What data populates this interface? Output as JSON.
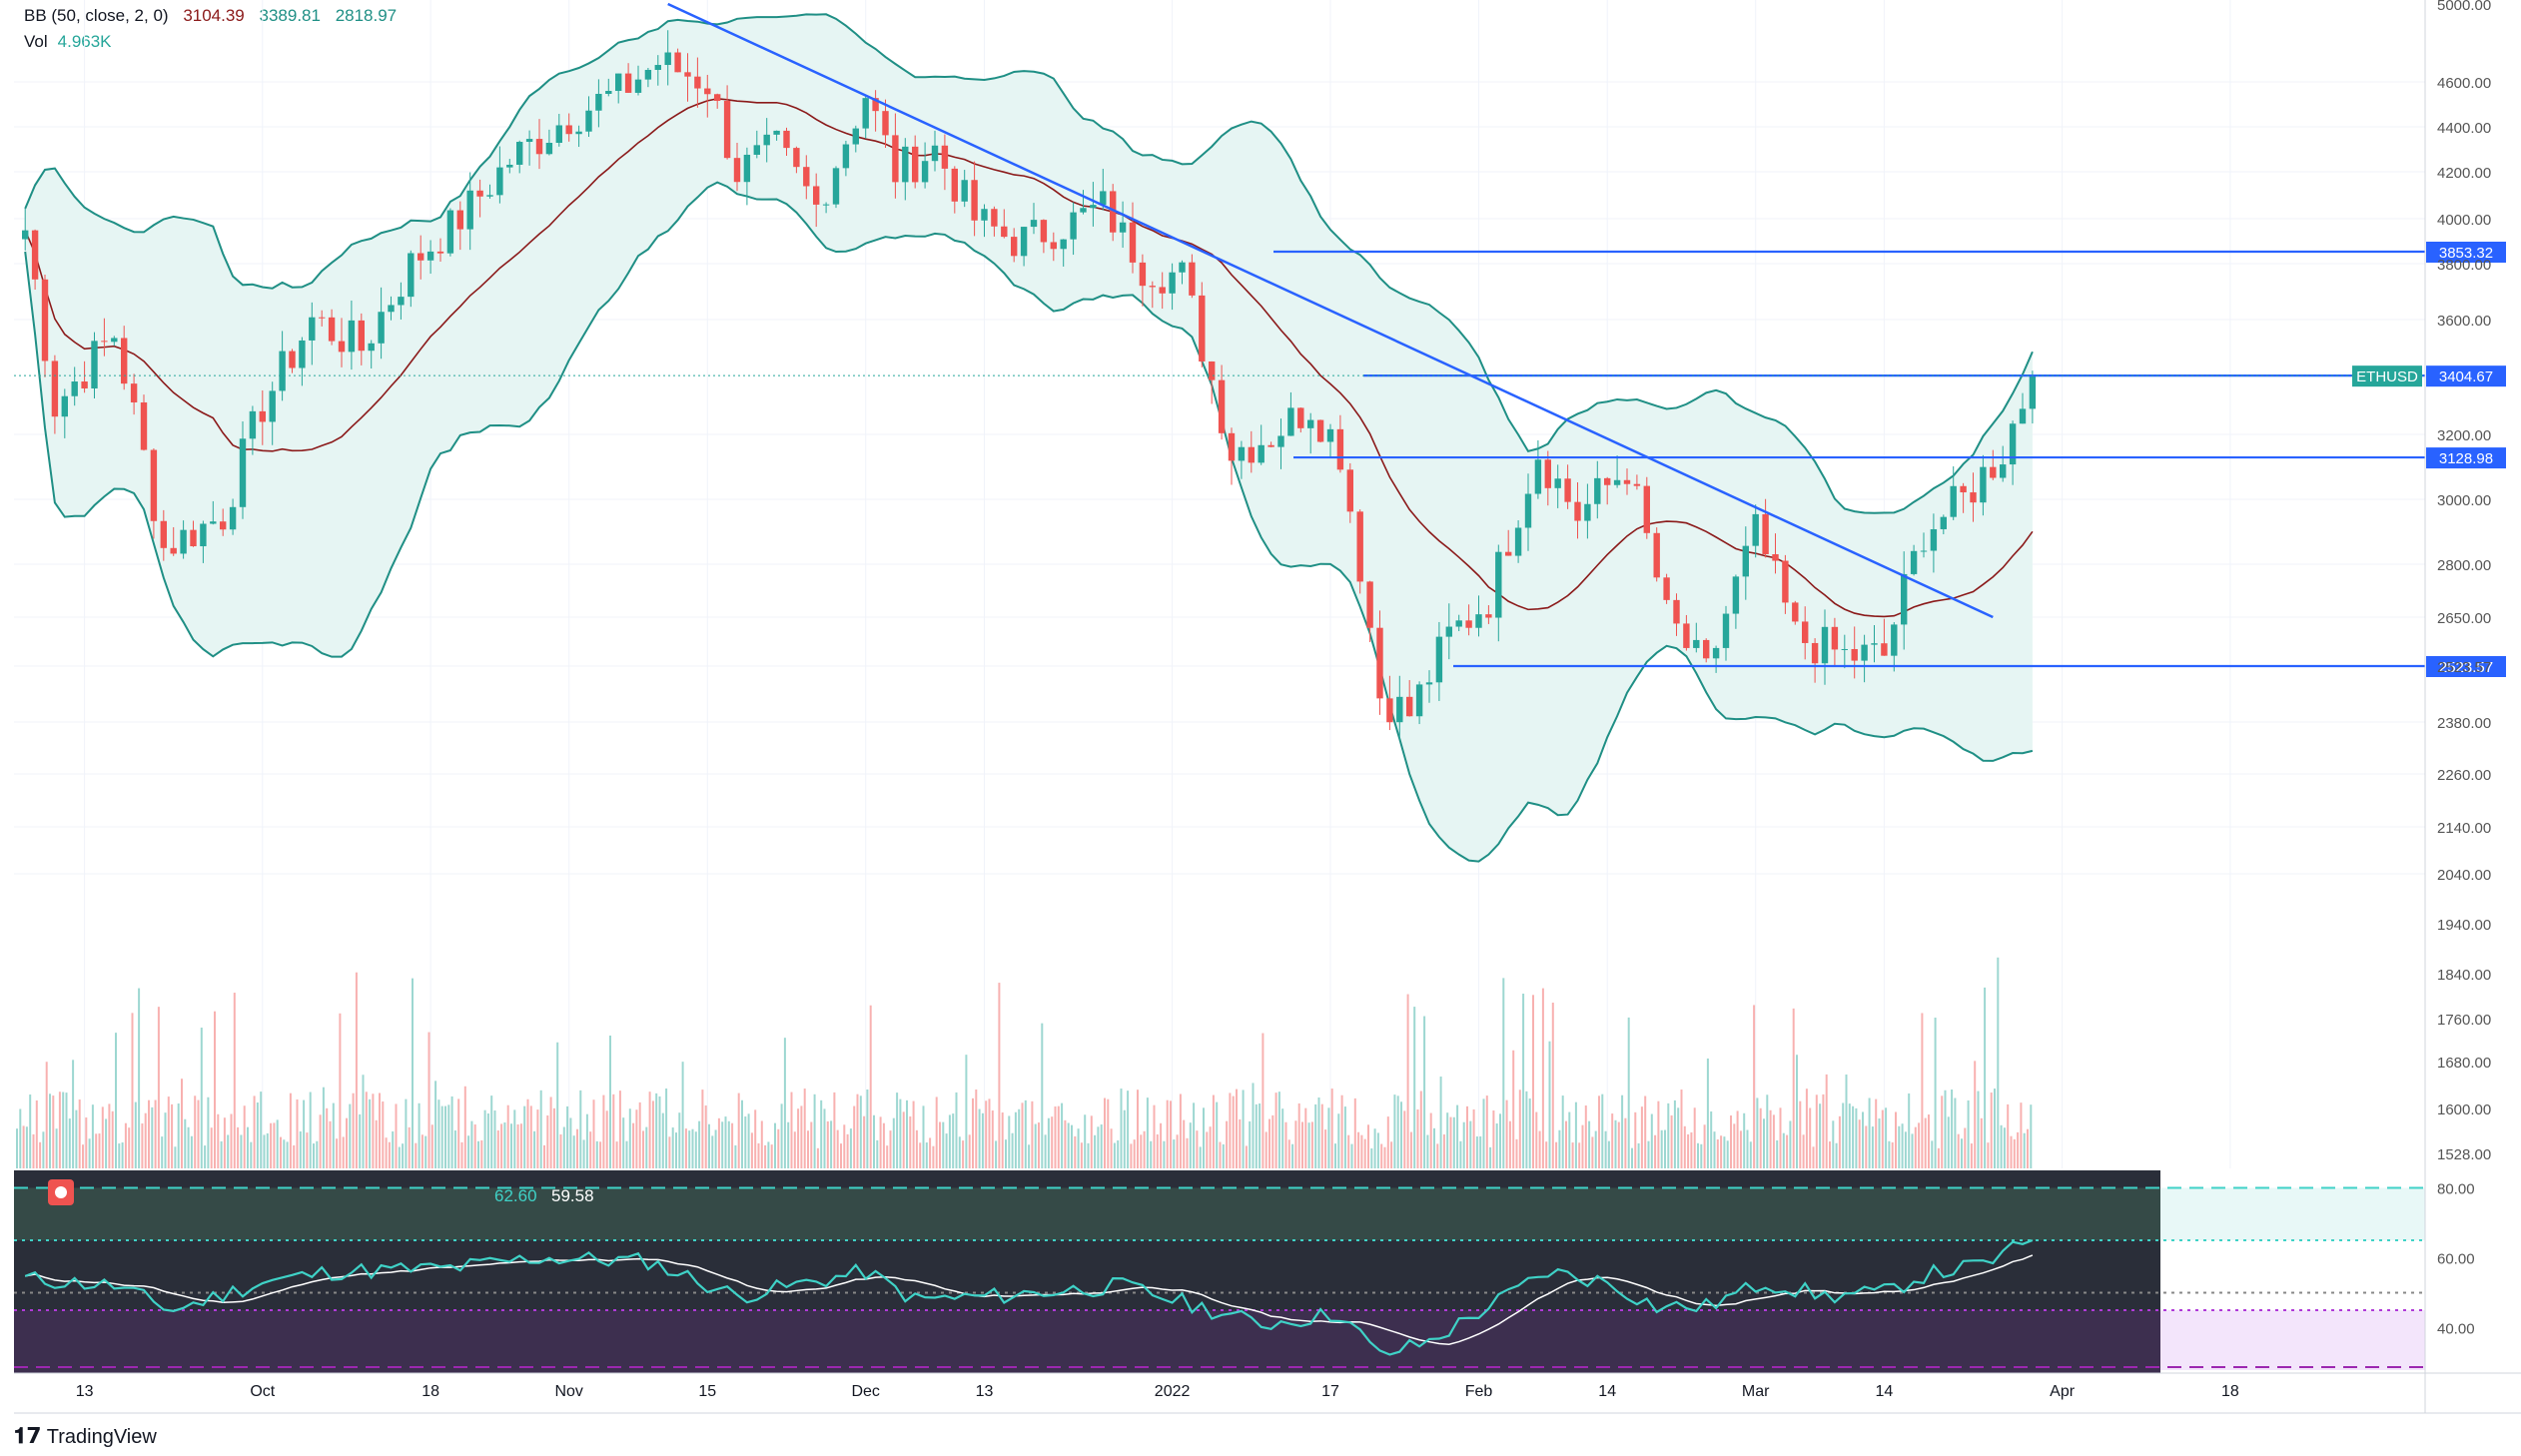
{
  "header": {
    "bb_label": "BB (50, close, 2, 0)",
    "bb_basis": "3104.39",
    "bb_upper": "3389.81",
    "bb_lower": "2818.97",
    "vol_label": "Vol",
    "vol_value": "4.963K"
  },
  "rsi_legend": {
    "value1": "62.60",
    "value2": "59.58"
  },
  "footer": {
    "brand": "TradingView"
  },
  "colors": {
    "up": "#26a69a",
    "down": "#ef5350",
    "band": "#1f8f85",
    "band_fill": "#e6f5f3",
    "basis": "#8b1a1a",
    "lines": "#2962ff",
    "rsi": "#3fd2c7",
    "rsi_signal": "#ffffff"
  },
  "chart_data": [
    {
      "type": "candlestick",
      "symbol": "ETHUSD",
      "price_label": "3404.67",
      "x_ticks": [
        "13",
        "Oct",
        "18",
        "Nov",
        "15",
        "Dec",
        "13",
        "2022",
        "17",
        "Feb",
        "14",
        "Mar",
        "14",
        "Apr",
        "18"
      ],
      "y_ticks": [
        "5000.00",
        "4600.00",
        "4400.00",
        "4200.00",
        "4000.00",
        "3800.00",
        "3600.00",
        "3200.00",
        "3000.00",
        "2800.00",
        "2650.00",
        "2523.57",
        "2380.00",
        "2260.00",
        "2140.00",
        "2040.00",
        "1940.00",
        "1840.00",
        "1760.00",
        "1680.00",
        "1600.00",
        "1528.00"
      ],
      "horizontal_lines": [
        {
          "price": 3853.32,
          "label": "3853.32"
        },
        {
          "price": 3404.67,
          "label": "3404.67"
        },
        {
          "price": 3128.98,
          "label": "3128.98"
        },
        {
          "price": 2523.57,
          "label": "2523.57"
        }
      ],
      "trendline": {
        "from": {
          "date": "2021-11-11",
          "price": 5000
        },
        "to": {
          "date": "2022-03-25",
          "price": 2650
        }
      },
      "close_key": [
        [
          "2021-09-07",
          3950
        ],
        [
          "2021-09-10",
          3300
        ],
        [
          "2021-09-16",
          3550
        ],
        [
          "2021-09-21",
          2850
        ],
        [
          "2021-09-27",
          2950
        ],
        [
          "2021-10-01",
          3300
        ],
        [
          "2021-10-06",
          3600
        ],
        [
          "2021-10-11",
          3500
        ],
        [
          "2021-10-16",
          3800
        ],
        [
          "2021-10-21",
          4000
        ],
        [
          "2021-10-26",
          4250
        ],
        [
          "2021-11-01",
          4450
        ],
        [
          "2021-11-06",
          4550
        ],
        [
          "2021-11-10",
          4700
        ],
        [
          "2021-11-15",
          4600
        ],
        [
          "2021-11-18",
          4200
        ],
        [
          "2021-11-22",
          4300
        ],
        [
          "2021-11-26",
          4050
        ],
        [
          "2021-12-01",
          4550
        ],
        [
          "2021-12-04",
          4200
        ],
        [
          "2021-12-08",
          4300
        ],
        [
          "2021-12-12",
          4000
        ],
        [
          "2021-12-16",
          3900
        ],
        [
          "2021-12-20",
          3950
        ],
        [
          "2021-12-25",
          4050
        ],
        [
          "2021-12-29",
          3800
        ],
        [
          "2022-01-02",
          3750
        ],
        [
          "2022-01-07",
          3150
        ],
        [
          "2022-01-11",
          3200
        ],
        [
          "2022-01-15",
          3300
        ],
        [
          "2022-01-18",
          3150
        ],
        [
          "2022-01-22",
          2450
        ],
        [
          "2022-01-25",
          2400
        ],
        [
          "2022-01-29",
          2600
        ],
        [
          "2022-02-02",
          2700
        ],
        [
          "2022-02-07",
          3150
        ],
        [
          "2022-02-11",
          2950
        ],
        [
          "2022-02-16",
          3100
        ],
        [
          "2022-02-20",
          2650
        ],
        [
          "2022-02-24",
          2500
        ],
        [
          "2022-03-01",
          2900
        ],
        [
          "2022-03-05",
          2600
        ],
        [
          "2022-03-10",
          2550
        ],
        [
          "2022-03-14",
          2550
        ],
        [
          "2022-03-18",
          2900
        ],
        [
          "2022-03-22",
          3000
        ],
        [
          "2022-03-26",
          3150
        ],
        [
          "2022-03-29",
          3400
        ]
      ]
    },
    {
      "type": "bar",
      "name": "Vol",
      "note": "volume histogram of daily candles"
    },
    {
      "type": "line",
      "name": "RSI",
      "y_ticks": [
        "80.00",
        "60.00",
        "40.00"
      ],
      "levels": [
        80,
        65,
        50,
        45,
        30
      ],
      "ylim": [
        27,
        85
      ],
      "key": [
        [
          "2021-09-07",
          54
        ],
        [
          "2021-09-16",
          52
        ],
        [
          "2021-09-22",
          45
        ],
        [
          "2021-10-01",
          53
        ],
        [
          "2021-10-08",
          56
        ],
        [
          "2021-10-20",
          57
        ],
        [
          "2021-10-29",
          60
        ],
        [
          "2021-11-09",
          59
        ],
        [
          "2021-11-18",
          49
        ],
        [
          "2021-12-01",
          56
        ],
        [
          "2021-12-06",
          48
        ],
        [
          "2021-12-14",
          49
        ],
        [
          "2021-12-27",
          52
        ],
        [
          "2022-01-05",
          45
        ],
        [
          "2022-01-10",
          41
        ],
        [
          "2022-01-18",
          44
        ],
        [
          "2022-01-22",
          32
        ],
        [
          "2022-01-27",
          36
        ],
        [
          "2022-02-08",
          56
        ],
        [
          "2022-02-14",
          53
        ],
        [
          "2022-02-19",
          46
        ],
        [
          "2022-02-24",
          46
        ],
        [
          "2022-03-02",
          53
        ],
        [
          "2022-03-08",
          49
        ],
        [
          "2022-03-14",
          50
        ],
        [
          "2022-03-18",
          55
        ],
        [
          "2022-03-24",
          58
        ],
        [
          "2022-03-29",
          65
        ]
      ]
    }
  ]
}
